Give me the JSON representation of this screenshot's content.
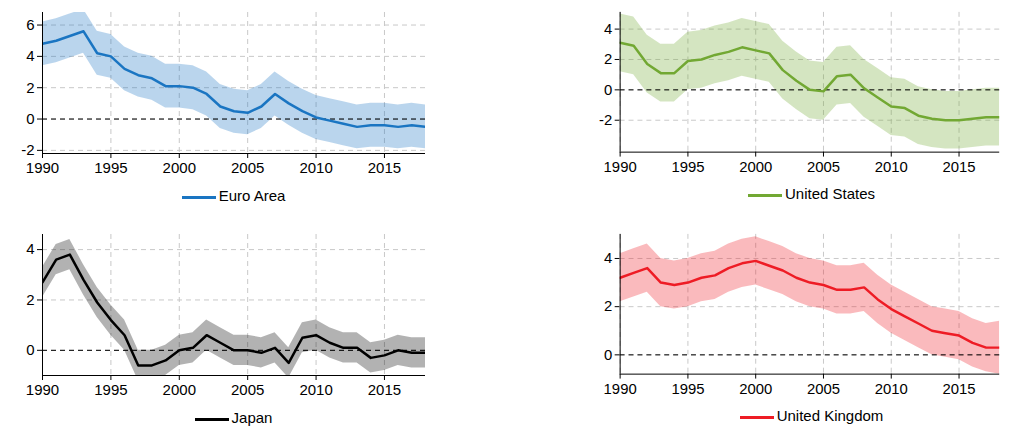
{
  "chart_data": [
    {
      "type": "line",
      "x": [
        1990,
        1991,
        1992,
        1993,
        1994,
        1995,
        1996,
        1997,
        1998,
        1999,
        2000,
        2001,
        2002,
        2003,
        2004,
        2005,
        2006,
        2007,
        2008,
        2009,
        2010,
        2011,
        2012,
        2013,
        2014,
        2015,
        2016,
        2017,
        2018
      ],
      "series": [
        {
          "name": "Euro Area",
          "color": "#1a75c2",
          "values": [
            4.8,
            5.0,
            5.3,
            5.6,
            4.2,
            4.0,
            3.2,
            2.8,
            2.6,
            2.1,
            2.1,
            2.0,
            1.6,
            0.8,
            0.5,
            0.4,
            0.8,
            1.6,
            1.0,
            0.5,
            0.1,
            -0.1,
            -0.3,
            -0.5,
            -0.4,
            -0.4,
            -0.5,
            -0.4,
            -0.5
          ],
          "lower": [
            3.4,
            3.6,
            3.9,
            4.2,
            2.8,
            2.6,
            1.8,
            1.4,
            1.2,
            0.7,
            0.7,
            0.6,
            0.2,
            -0.6,
            -0.9,
            -1.0,
            -0.6,
            0.2,
            -0.4,
            -0.9,
            -1.3,
            -1.5,
            -1.7,
            -1.9,
            -1.8,
            -1.8,
            -1.9,
            -1.8,
            -1.9
          ],
          "upper": [
            6.2,
            6.4,
            6.7,
            7.0,
            5.6,
            5.4,
            4.6,
            4.2,
            4.0,
            3.5,
            3.5,
            3.4,
            3.0,
            2.2,
            1.9,
            1.8,
            2.2,
            3.0,
            2.4,
            1.9,
            1.5,
            1.3,
            1.1,
            0.9,
            1.0,
            1.0,
            0.9,
            1.0,
            0.9
          ]
        }
      ],
      "xlim": [
        1990,
        2018
      ],
      "ylim": [
        -2.2,
        6.8
      ],
      "xticks": [
        1990,
        1995,
        2000,
        2005,
        2010,
        2015
      ],
      "yticks": [
        -2,
        0,
        2,
        4,
        6
      ],
      "baseline": 0,
      "grid": true,
      "legend": "bottom"
    },
    {
      "type": "line",
      "x": [
        1990,
        1991,
        1992,
        1993,
        1994,
        1995,
        1996,
        1997,
        1998,
        1999,
        2000,
        2001,
        2002,
        2003,
        2004,
        2005,
        2006,
        2007,
        2008,
        2009,
        2010,
        2011,
        2012,
        2013,
        2014,
        2015,
        2016,
        2017,
        2018
      ],
      "series": [
        {
          "name": "United States",
          "color": "#72a833",
          "values": [
            3.1,
            2.9,
            1.7,
            1.1,
            1.1,
            1.9,
            2.0,
            2.3,
            2.5,
            2.8,
            2.6,
            2.4,
            1.3,
            0.6,
            0.0,
            -0.1,
            0.9,
            1.0,
            0.1,
            -0.5,
            -1.1,
            -1.2,
            -1.7,
            -1.9,
            -2.0,
            -2.0,
            -1.9,
            -1.8,
            -1.8
          ],
          "lower": [
            1.2,
            1.0,
            -0.2,
            -0.8,
            -0.8,
            0.0,
            0.1,
            0.4,
            0.6,
            0.9,
            0.7,
            0.5,
            -0.6,
            -1.3,
            -1.9,
            -2.0,
            -1.0,
            -0.9,
            -1.8,
            -2.4,
            -3.0,
            -3.1,
            -3.6,
            -3.8,
            -3.9,
            -3.9,
            -3.8,
            -3.7,
            -3.7
          ],
          "upper": [
            5.0,
            4.8,
            3.6,
            3.0,
            3.0,
            3.8,
            3.9,
            4.2,
            4.4,
            4.7,
            4.5,
            4.3,
            3.2,
            2.5,
            1.9,
            1.8,
            2.8,
            2.9,
            2.0,
            1.4,
            0.8,
            0.7,
            0.2,
            0.0,
            -0.1,
            -0.1,
            0.0,
            0.1,
            0.1
          ]
        }
      ],
      "xlim": [
        1990,
        2018
      ],
      "ylim": [
        -4.1,
        5.1
      ],
      "xticks": [
        1990,
        1995,
        2000,
        2005,
        2010,
        2015
      ],
      "yticks": [
        -2,
        0,
        2,
        4
      ],
      "baseline": 0,
      "grid": true,
      "legend": "bottom"
    },
    {
      "type": "line",
      "x": [
        1990,
        1991,
        1992,
        1993,
        1994,
        1995,
        1996,
        1997,
        1998,
        1999,
        2000,
        2001,
        2002,
        2003,
        2004,
        2005,
        2006,
        2007,
        2008,
        2009,
        2010,
        2011,
        2012,
        2013,
        2014,
        2015,
        2016,
        2017,
        2018
      ],
      "series": [
        {
          "name": "Japan",
          "color": "#000000",
          "values": [
            2.7,
            3.6,
            3.8,
            2.8,
            1.9,
            1.2,
            0.6,
            -0.6,
            -0.6,
            -0.4,
            0.0,
            0.1,
            0.6,
            0.3,
            0.0,
            0.0,
            -0.1,
            0.1,
            -0.5,
            0.5,
            0.6,
            0.3,
            0.1,
            0.1,
            -0.3,
            -0.2,
            0.0,
            -0.1,
            -0.1
          ],
          "lower": [
            2.1,
            3.0,
            3.2,
            2.2,
            1.3,
            0.6,
            0.0,
            -1.2,
            -1.2,
            -1.0,
            -0.6,
            -0.5,
            0.0,
            -0.3,
            -0.6,
            -0.6,
            -0.7,
            -0.5,
            -1.1,
            -0.1,
            0.0,
            -0.3,
            -0.5,
            -0.5,
            -0.9,
            -0.8,
            -0.6,
            -0.7,
            -0.7
          ],
          "upper": [
            3.3,
            4.2,
            4.4,
            3.4,
            2.5,
            1.8,
            1.2,
            0.0,
            0.0,
            0.2,
            0.6,
            0.7,
            1.2,
            0.9,
            0.6,
            0.6,
            0.5,
            0.7,
            0.1,
            1.1,
            1.2,
            0.9,
            0.7,
            0.7,
            0.3,
            0.4,
            0.6,
            0.5,
            0.5
          ]
        }
      ],
      "xlim": [
        1990,
        2018
      ],
      "ylim": [
        -1.0,
        4.6
      ],
      "xticks": [
        1990,
        1995,
        2000,
        2005,
        2010,
        2015
      ],
      "yticks": [
        0,
        2,
        4
      ],
      "baseline": 0,
      "grid": true,
      "legend": "bottom"
    },
    {
      "type": "line",
      "x": [
        1990,
        1991,
        1992,
        1993,
        1994,
        1995,
        1996,
        1997,
        1998,
        1999,
        2000,
        2001,
        2002,
        2003,
        2004,
        2005,
        2006,
        2007,
        2008,
        2009,
        2010,
        2011,
        2012,
        2013,
        2014,
        2015,
        2016,
        2017,
        2018
      ],
      "series": [
        {
          "name": "United Kingdom",
          "color": "#ee1c25",
          "values": [
            3.2,
            3.4,
            3.6,
            3.0,
            2.9,
            3.0,
            3.2,
            3.3,
            3.6,
            3.8,
            3.9,
            3.7,
            3.5,
            3.2,
            3.0,
            2.9,
            2.7,
            2.7,
            2.8,
            2.3,
            1.9,
            1.6,
            1.3,
            1.0,
            0.9,
            0.8,
            0.5,
            0.3,
            0.3
          ],
          "lower": [
            2.2,
            2.4,
            2.6,
            2.0,
            1.9,
            2.0,
            2.2,
            2.3,
            2.6,
            2.8,
            2.9,
            2.7,
            2.5,
            2.2,
            2.0,
            1.9,
            1.7,
            1.7,
            1.8,
            1.3,
            0.9,
            0.6,
            0.3,
            0.0,
            -0.1,
            -0.2,
            -0.5,
            -0.7,
            -0.8
          ],
          "upper": [
            4.2,
            4.4,
            4.6,
            4.0,
            3.9,
            4.0,
            4.2,
            4.3,
            4.6,
            4.8,
            4.9,
            4.7,
            4.5,
            4.2,
            4.0,
            3.9,
            3.7,
            3.7,
            3.8,
            3.3,
            2.9,
            2.6,
            2.3,
            2.0,
            1.9,
            1.8,
            1.5,
            1.3,
            1.4
          ]
        }
      ],
      "xlim": [
        1990,
        2018
      ],
      "ylim": [
        -0.8,
        5.0
      ],
      "xticks": [
        1990,
        1995,
        2000,
        2005,
        2010,
        2015
      ],
      "yticks": [
        0,
        2,
        4
      ],
      "baseline": 0,
      "grid": true,
      "legend": "bottom"
    }
  ]
}
